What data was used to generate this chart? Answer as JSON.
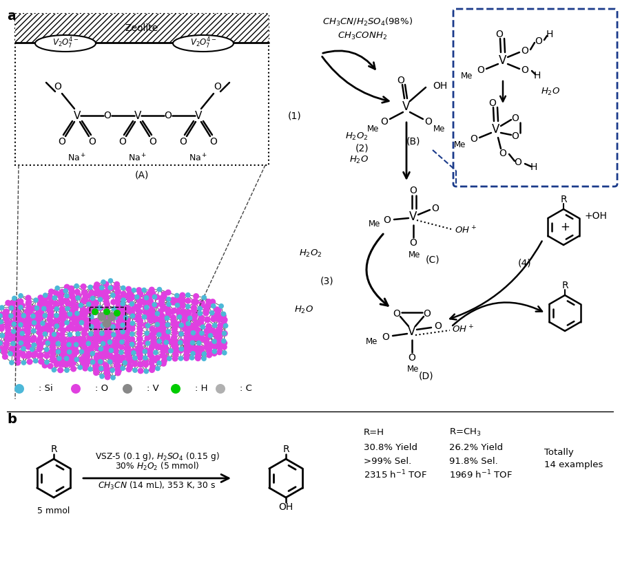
{
  "bg_color": "#ffffff",
  "si_color": "#4db8d8",
  "o_color": "#e040e0",
  "v_color": "#888888",
  "h_color": "#00cc00",
  "c_color": "#b0b0b0",
  "dashed_blue": "#1a3a8a",
  "panel_a_label": "a",
  "panel_b_label": "b",
  "zeolite_text": "Zeolite",
  "label_A": "(A)",
  "label_B": "(B)",
  "label_C": "(C)",
  "label_D": "(D)",
  "step1": "(1)",
  "step2": "(2)",
  "step3": "(3)",
  "step4": "(4)"
}
